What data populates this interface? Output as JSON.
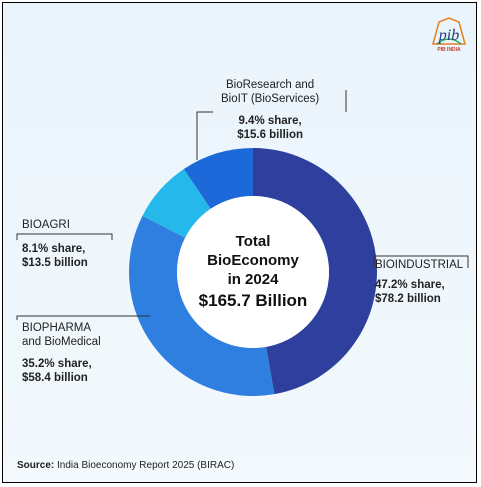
{
  "chart_data": {
    "type": "donut",
    "center": {
      "line1": "Total",
      "line2": "BioEconomy",
      "line3": "in 2024",
      "total": "$165.7 Billion"
    },
    "slices": [
      {
        "name_lines": [
          "BIOINDUSTRIAL"
        ],
        "share": 47.2,
        "share_label": "47.2% share,",
        "value": 78.2,
        "value_label": "$78.2 billion",
        "color": "#2e3f9e"
      },
      {
        "name_lines": [
          "BIOPHARMA",
          "and BioMedical"
        ],
        "share": 35.2,
        "share_label": "35.2% share,",
        "value": 58.4,
        "value_label": "$58.4 billion",
        "color": "#2f7fe0"
      },
      {
        "name_lines": [
          "BIOAGRI"
        ],
        "share": 8.1,
        "share_label": "8.1% share,",
        "value": 13.5,
        "value_label": "$13.5 billion",
        "color": "#25b8ea"
      },
      {
        "name_lines": [
          "BioResearch and",
          "BioIT (BioServices)"
        ],
        "share": 9.4,
        "share_label": "9.4% share,",
        "value": 15.6,
        "value_label": "$15.6 billion",
        "color": "#1e69d9"
      }
    ],
    "source_label": "Source:",
    "source_text": " India Bioeconomy Report 2025 (BIRAC)"
  },
  "logo": {
    "text": "pib",
    "caption": "PIB INDIA"
  }
}
